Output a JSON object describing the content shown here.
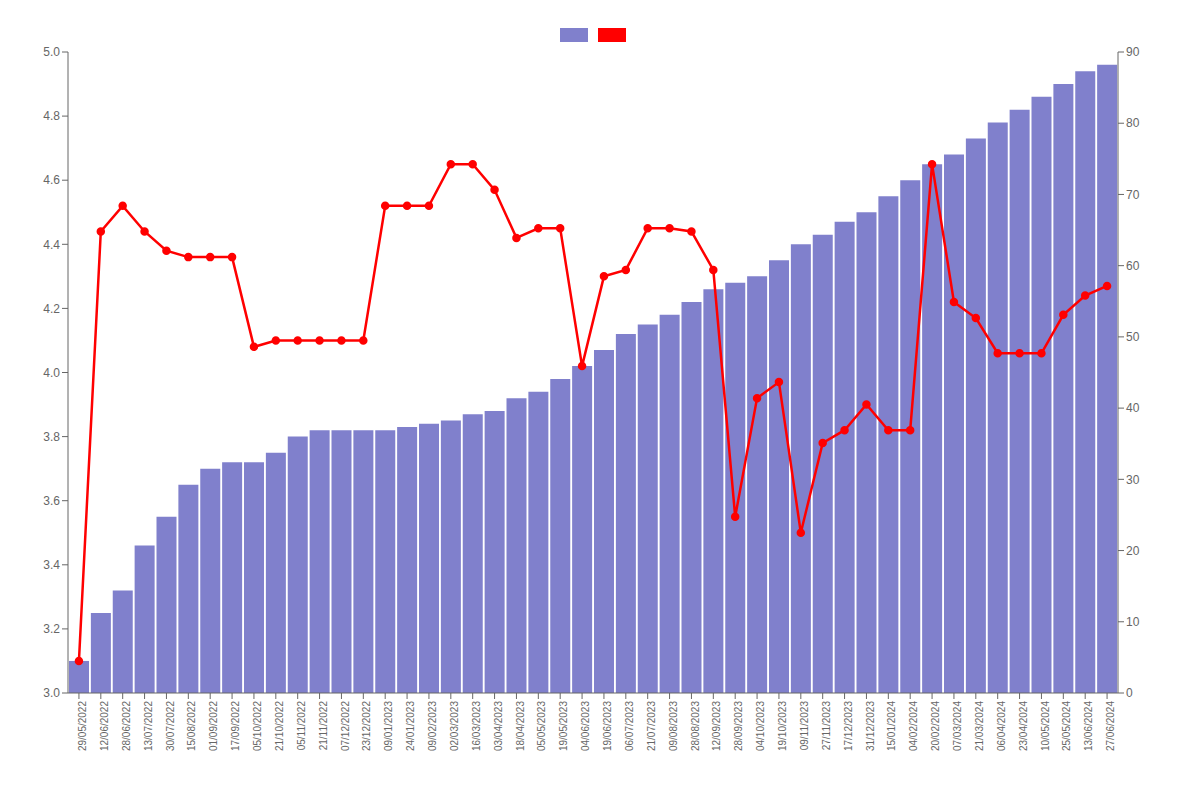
{
  "chart_data": {
    "type": "bar",
    "categories": [
      "29/05/2022",
      "12/06/2022",
      "28/06/2022",
      "13/07/2022",
      "30/07/2022",
      "15/08/2022",
      "01/09/2022",
      "17/09/2022",
      "05/10/2022",
      "21/10/2022",
      "05/11/2022",
      "21/11/2022",
      "07/12/2022",
      "23/12/2022",
      "09/01/2023",
      "24/01/2023",
      "09/02/2023",
      "02/03/2023",
      "16/03/2023",
      "03/04/2023",
      "18/04/2023",
      "05/05/2023",
      "19/05/2023",
      "04/06/2023",
      "19/06/2023",
      "06/07/2023",
      "21/07/2023",
      "09/08/2023",
      "28/08/2023",
      "12/09/2023",
      "28/09/2023",
      "04/10/2023",
      "19/10/2023",
      "09/11/2023",
      "27/11/2023",
      "17/12/2023",
      "31/12/2023",
      "15/01/2024",
      "04/02/2024",
      "20/02/2024",
      "07/03/2024",
      "21/03/2024",
      "06/04/2024",
      "23/04/2024",
      "10/05/2024",
      "25/05/2024",
      "13/06/2024",
      "27/06/2024"
    ],
    "series": [
      {
        "type": "bar",
        "color": "#8080cc",
        "values": [
          3.1,
          3.25,
          3.32,
          3.46,
          3.55,
          3.65,
          3.7,
          3.72,
          3.72,
          3.75,
          3.8,
          3.82,
          3.82,
          3.82,
          3.82,
          3.83,
          3.84,
          3.85,
          3.87,
          3.88,
          3.92,
          3.94,
          3.98,
          4.02,
          4.07,
          4.12,
          4.15,
          4.18,
          4.22,
          4.26,
          4.28,
          4.3,
          4.35,
          4.4,
          4.43,
          4.47,
          4.5,
          4.55,
          4.6,
          4.65,
          4.68,
          4.73,
          4.78,
          4.82,
          4.86,
          4.9,
          4.94,
          4.96
        ]
      },
      {
        "type": "line",
        "color": "#ff0000",
        "marker": "circle",
        "values": [
          3.1,
          4.44,
          4.52,
          4.44,
          4.38,
          4.36,
          4.36,
          4.36,
          4.08,
          4.1,
          4.1,
          4.1,
          4.1,
          4.1,
          4.52,
          4.52,
          4.52,
          4.65,
          4.65,
          4.57,
          4.42,
          4.45,
          4.45,
          4.02,
          4.3,
          4.32,
          4.45,
          4.45,
          4.44,
          4.32,
          3.55,
          3.92,
          3.97,
          3.5,
          3.78,
          3.82,
          3.9,
          3.82,
          3.82,
          4.65,
          4.22,
          4.17,
          4.06,
          4.06,
          4.06,
          4.18,
          4.24,
          4.27
        ]
      }
    ],
    "ylim": [
      3.0,
      5.0
    ],
    "yticks": [
      {
        "value": 3.0,
        "label": "3.0"
      },
      3.2,
      3.4,
      3.6,
      3.8,
      {
        "value": 4.0,
        "label": "4.0"
      },
      4.2,
      4.4,
      4.6,
      4.8,
      {
        "value": 5.0,
        "label": "5.0"
      }
    ],
    "y2lim": [
      0,
      90
    ],
    "y2ticks": [
      0,
      10,
      20,
      30,
      40,
      50,
      60,
      70,
      80,
      90
    ],
    "grid": false,
    "legend": "top"
  }
}
